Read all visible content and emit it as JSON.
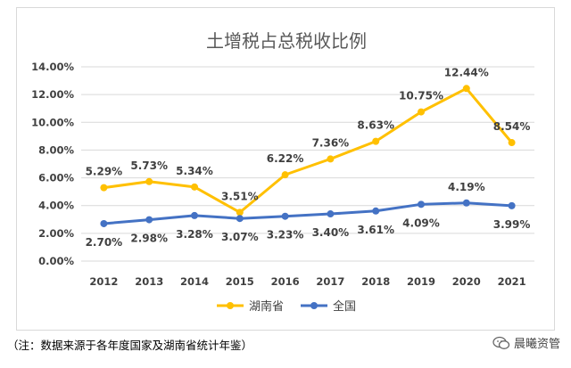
{
  "chart_data": {
    "type": "line",
    "title": "土增税占总税收比例",
    "categories": [
      "2012",
      "2013",
      "2014",
      "2015",
      "2016",
      "2017",
      "2018",
      "2019",
      "2020",
      "2021"
    ],
    "series": [
      {
        "name": "湖南省",
        "color": "#ffc000",
        "values": [
          5.29,
          5.73,
          5.34,
          3.51,
          6.22,
          7.36,
          8.63,
          10.75,
          12.44,
          8.54
        ],
        "labels": [
          "5.29%",
          "5.73%",
          "5.34%",
          "3.51%",
          "6.22%",
          "7.36%",
          "8.63%",
          "10.75%",
          "12.44%",
          "8.54%"
        ]
      },
      {
        "name": "全国",
        "color": "#4472c4",
        "values": [
          2.7,
          2.98,
          3.28,
          3.07,
          3.23,
          3.4,
          3.61,
          4.09,
          4.19,
          3.99
        ],
        "labels": [
          "2.70%",
          "2.98%",
          "3.28%",
          "3.07%",
          "3.23%",
          "3.40%",
          "3.61%",
          "4.09%",
          "4.19%",
          "3.99%"
        ]
      }
    ],
    "yticks": [
      "0.00%",
      "2.00%",
      "4.00%",
      "6.00%",
      "8.00%",
      "10.00%",
      "12.00%",
      "14.00%"
    ],
    "ylim": [
      0,
      14
    ],
    "grid": true,
    "legend_position": "bottom"
  },
  "footnote": "（注：数据来源于各年度国家及湖南省统计年鉴）",
  "brand": {
    "name": "晨曦资管",
    "icon": "wechat-icon"
  }
}
